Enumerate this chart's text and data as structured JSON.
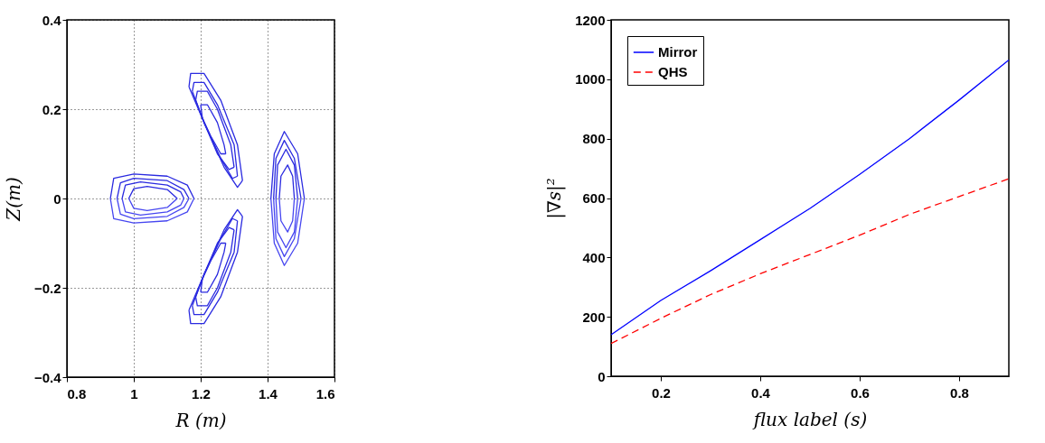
{
  "chart_data": [
    {
      "type": "line",
      "xlabel": "R (m)",
      "ylabel": "Z(m)",
      "xlim": [
        0.8,
        1.6
      ],
      "xticks": [
        0.8,
        1,
        1.2,
        1.4,
        1.6
      ],
      "ylim": [
        -0.4,
        0.4
      ],
      "yticks": [
        -0.4,
        -0.2,
        0,
        0.2,
        0.4
      ],
      "grid": true,
      "line_style": "solid",
      "series": [
        {
          "color": "#2a2ae0",
          "x": [
            0.93,
            0.94,
            1.0,
            1.1,
            1.16,
            1.18
          ],
          "values": [
            0,
            0.045,
            0.055,
            0.05,
            0.03,
            0
          ]
        },
        {
          "color": "#4646f0",
          "x": [
            0.93,
            0.94,
            1.0,
            1.1,
            1.16,
            1.18
          ],
          "values": [
            0,
            -0.045,
            -0.055,
            -0.05,
            -0.03,
            0
          ]
        },
        {
          "color": "#2a2ae0",
          "x": [
            0.95,
            0.96,
            1.0,
            1.1,
            1.15,
            1.165
          ],
          "values": [
            0,
            0.035,
            0.045,
            0.04,
            0.02,
            0
          ]
        },
        {
          "color": "#4646f0",
          "x": [
            0.95,
            0.96,
            1.0,
            1.1,
            1.15,
            1.165
          ],
          "values": [
            0,
            -0.035,
            -0.045,
            -0.04,
            -0.02,
            0
          ]
        },
        {
          "color": "#2a2ae0",
          "x": [
            0.965,
            0.975,
            1.02,
            1.1,
            1.14,
            1.15
          ],
          "values": [
            0,
            0.03,
            0.037,
            0.03,
            0.015,
            0
          ]
        },
        {
          "color": "#4646f0",
          "x": [
            0.965,
            0.975,
            1.02,
            1.1,
            1.14,
            1.15
          ],
          "values": [
            0,
            -0.03,
            -0.037,
            -0.03,
            -0.015,
            0
          ]
        },
        {
          "color": "#2a2ae0",
          "x": [
            0.985,
            1.0,
            1.04,
            1.1,
            1.13
          ],
          "values": [
            0,
            0.022,
            0.027,
            0.02,
            0
          ]
        },
        {
          "color": "#4646f0",
          "x": [
            0.985,
            1.0,
            1.04,
            1.1,
            1.13
          ],
          "values": [
            0,
            -0.022,
            -0.027,
            -0.02,
            0
          ]
        },
        {
          "color": "#2a2ae0",
          "x": [
            1.41,
            1.42,
            1.45,
            1.49,
            1.51
          ],
          "values": [
            0,
            0.1,
            0.15,
            0.1,
            0
          ]
        },
        {
          "color": "#4646f0",
          "x": [
            1.41,
            1.42,
            1.45,
            1.49,
            1.51
          ],
          "values": [
            0,
            -0.1,
            -0.15,
            -0.1,
            0
          ]
        },
        {
          "color": "#2a2ae0",
          "x": [
            1.418,
            1.425,
            1.45,
            1.48,
            1.5
          ],
          "values": [
            0,
            0.09,
            0.13,
            0.09,
            0
          ]
        },
        {
          "color": "#4646f0",
          "x": [
            1.418,
            1.425,
            1.45,
            1.48,
            1.5
          ],
          "values": [
            0,
            -0.09,
            -0.13,
            -0.09,
            0
          ]
        },
        {
          "color": "#2a2ae0",
          "x": [
            1.425,
            1.43,
            1.455,
            1.48,
            1.49
          ],
          "values": [
            0,
            0.075,
            0.11,
            0.075,
            0
          ]
        },
        {
          "color": "#4646f0",
          "x": [
            1.425,
            1.43,
            1.455,
            1.48,
            1.49
          ],
          "values": [
            0,
            -0.075,
            -0.11,
            -0.075,
            0
          ]
        },
        {
          "color": "#2a2ae0",
          "x": [
            1.435,
            1.44,
            1.46,
            1.475,
            1.48
          ],
          "values": [
            0,
            0.05,
            0.075,
            0.05,
            0
          ]
        },
        {
          "color": "#4646f0",
          "x": [
            1.435,
            1.44,
            1.46,
            1.475,
            1.48
          ],
          "values": [
            0,
            -0.05,
            -0.075,
            -0.05,
            0
          ]
        },
        {
          "color": "#2a2ae0",
          "x": [
            1.165,
            1.17,
            1.21,
            1.26,
            1.31,
            1.325
          ],
          "values": [
            0.25,
            0.28,
            0.28,
            0.22,
            0.12,
            0.04
          ]
        },
        {
          "color": "#2a2ae0",
          "x": [
            1.165,
            1.21,
            1.27,
            1.31,
            1.325
          ],
          "values": [
            0.25,
            0.17,
            0.07,
            0.025,
            0.04
          ]
        },
        {
          "color": "#2a2ae0",
          "x": [
            1.175,
            1.18,
            1.21,
            1.25,
            1.3,
            1.31
          ],
          "values": [
            0.24,
            0.26,
            0.26,
            0.21,
            0.12,
            0.05
          ]
        },
        {
          "color": "#2a2ae0",
          "x": [
            1.175,
            1.21,
            1.26,
            1.295,
            1.31
          ],
          "values": [
            0.24,
            0.17,
            0.09,
            0.045,
            0.05
          ]
        },
        {
          "color": "#2a2ae0",
          "x": [
            1.185,
            1.19,
            1.22,
            1.25,
            1.29,
            1.3
          ],
          "values": [
            0.22,
            0.24,
            0.24,
            0.2,
            0.12,
            0.07
          ]
        },
        {
          "color": "#2a2ae0",
          "x": [
            1.185,
            1.21,
            1.25,
            1.285,
            1.3
          ],
          "values": [
            0.22,
            0.17,
            0.1,
            0.065,
            0.07
          ]
        },
        {
          "color": "#2a2ae0",
          "x": [
            1.2,
            1.22,
            1.25,
            1.27,
            1.275
          ],
          "values": [
            0.21,
            0.21,
            0.17,
            0.12,
            0.1
          ]
        },
        {
          "color": "#2a2ae0",
          "x": [
            1.2,
            1.205,
            1.23,
            1.26,
            1.275
          ],
          "values": [
            0.21,
            0.18,
            0.14,
            0.1,
            0.1
          ]
        },
        {
          "color": "#2a2ae0",
          "x": [
            1.165,
            1.17,
            1.21,
            1.26,
            1.31,
            1.325
          ],
          "values": [
            -0.25,
            -0.28,
            -0.28,
            -0.22,
            -0.12,
            -0.04
          ]
        },
        {
          "color": "#2a2ae0",
          "x": [
            1.165,
            1.21,
            1.27,
            1.31,
            1.325
          ],
          "values": [
            -0.25,
            -0.17,
            -0.07,
            -0.025,
            -0.04
          ]
        },
        {
          "color": "#2a2ae0",
          "x": [
            1.175,
            1.18,
            1.21,
            1.25,
            1.3,
            1.31
          ],
          "values": [
            -0.24,
            -0.26,
            -0.26,
            -0.21,
            -0.12,
            -0.05
          ]
        },
        {
          "color": "#2a2ae0",
          "x": [
            1.175,
            1.21,
            1.26,
            1.295,
            1.31
          ],
          "values": [
            -0.24,
            -0.17,
            -0.09,
            -0.045,
            -0.05
          ]
        },
        {
          "color": "#2a2ae0",
          "x": [
            1.185,
            1.19,
            1.22,
            1.25,
            1.29,
            1.3
          ],
          "values": [
            -0.22,
            -0.24,
            -0.24,
            -0.2,
            -0.12,
            -0.07
          ]
        },
        {
          "color": "#2a2ae0",
          "x": [
            1.185,
            1.21,
            1.25,
            1.285,
            1.3
          ],
          "values": [
            -0.22,
            -0.17,
            -0.1,
            -0.065,
            -0.07
          ]
        },
        {
          "color": "#2a2ae0",
          "x": [
            1.2,
            1.22,
            1.25,
            1.27,
            1.275
          ],
          "values": [
            -0.21,
            -0.21,
            -0.17,
            -0.12,
            -0.1
          ]
        },
        {
          "color": "#2a2ae0",
          "x": [
            1.2,
            1.205,
            1.23,
            1.26,
            1.275
          ],
          "values": [
            -0.21,
            -0.18,
            -0.14,
            -0.1,
            -0.1
          ]
        }
      ]
    },
    {
      "type": "line",
      "xlabel": "flux label (s)",
      "ylabel": "|∇s|²",
      "xlim": [
        0.1,
        0.9
      ],
      "xticks": [
        0.2,
        0.4,
        0.6,
        0.8
      ],
      "ylim": [
        0,
        1200
      ],
      "yticks": [
        0,
        200,
        400,
        600,
        800,
        1000,
        1200
      ],
      "legend": "top left",
      "x": [
        0.1,
        0.2,
        0.3,
        0.4,
        0.5,
        0.6,
        0.7,
        0.8,
        0.9
      ],
      "series": [
        {
          "name": "Mirror",
          "color": "#0000ff",
          "line_style": "solid",
          "values": [
            140,
            255,
            355,
            460,
            565,
            680,
            800,
            930,
            1065
          ]
        },
        {
          "name": "QHS",
          "color": "#ff0000",
          "line_style": "dashed",
          "values": [
            110,
            195,
            275,
            345,
            410,
            475,
            545,
            605,
            665
          ]
        }
      ]
    }
  ]
}
